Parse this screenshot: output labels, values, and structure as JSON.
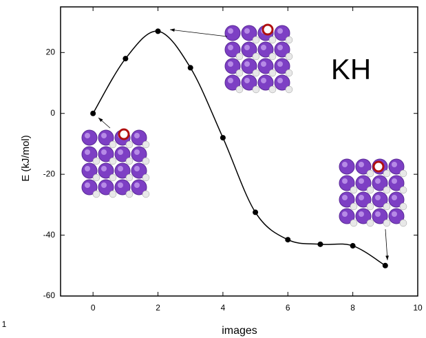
{
  "chart_data": {
    "type": "line",
    "x": [
      0,
      1,
      2,
      3,
      4,
      5,
      6,
      7,
      8,
      9
    ],
    "values": [
      0,
      18,
      27,
      15,
      -8,
      -32.5,
      -41.5,
      -43,
      -43.5,
      -50
    ],
    "color": "#000000",
    "xlabel": "images",
    "ylabel": "E (kJ/mol)",
    "annotation": "KH",
    "edge_text": "1",
    "xlim": [
      -1,
      10
    ],
    "xticks": [
      0,
      2,
      4,
      6,
      8,
      10
    ],
    "ylim": [
      -60,
      35
    ],
    "yticks": [
      -60,
      -40,
      -20,
      0,
      20
    ]
  }
}
